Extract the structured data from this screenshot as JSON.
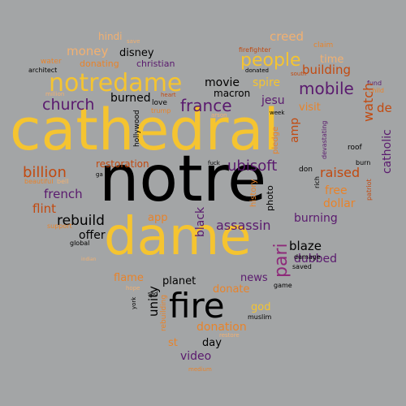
{
  "palette": {
    "background": "#a3a5a6",
    "yellow": "#f5c430",
    "orange": "#e8832a",
    "dark_orange": "#c24a10",
    "purple": "#5a1a6e",
    "magenta": "#8e2a7a",
    "peach": "#f2b070",
    "black": "#000000"
  },
  "words": [
    {
      "id": "notre",
      "text": "notre"
    },
    {
      "id": "cathedral",
      "text": "cathedral"
    },
    {
      "id": "dame",
      "text": "dame"
    },
    {
      "id": "fire",
      "text": "fire"
    },
    {
      "id": "notredame",
      "text": "notredame"
    },
    {
      "id": "people",
      "text": "people"
    },
    {
      "id": "church",
      "text": "church"
    },
    {
      "id": "france",
      "text": "france"
    },
    {
      "id": "mobile",
      "text": "mobile"
    },
    {
      "id": "paris",
      "text": "pari"
    },
    {
      "id": "rebuild",
      "text": "rebuild"
    },
    {
      "id": "billion",
      "text": "billion"
    },
    {
      "id": "money",
      "text": "money"
    },
    {
      "id": "creed",
      "text": "creed"
    },
    {
      "id": "building",
      "text": "building"
    },
    {
      "id": "disney",
      "text": "disney"
    },
    {
      "id": "hindi",
      "text": "hindi"
    },
    {
      "id": "save",
      "text": "save"
    },
    {
      "id": "water",
      "text": "water"
    },
    {
      "id": "donating",
      "text": "donating"
    },
    {
      "id": "christian",
      "text": "christian"
    },
    {
      "id": "architect",
      "text": "architect"
    },
    {
      "id": "firefighter",
      "text": "firefighter"
    },
    {
      "id": "claim",
      "text": "claim"
    },
    {
      "id": "time",
      "text": "time"
    },
    {
      "id": "donated",
      "text": "donated"
    },
    {
      "id": "south",
      "text": "south"
    },
    {
      "id": "million",
      "text": "million"
    },
    {
      "id": "movie",
      "text": "movie"
    },
    {
      "id": "spire",
      "text": "spire"
    },
    {
      "id": "macron",
      "text": "macron"
    },
    {
      "id": "heart",
      "text": "heart"
    },
    {
      "id": "fund",
      "text": "fund"
    },
    {
      "id": "child",
      "text": "child"
    },
    {
      "id": "burned",
      "text": "burned"
    },
    {
      "id": "love",
      "text": "love"
    },
    {
      "id": "jesu",
      "text": "jesu"
    },
    {
      "id": "visit",
      "text": "visit"
    },
    {
      "id": "watch",
      "text": "watch"
    },
    {
      "id": "de",
      "text": "de"
    },
    {
      "id": "catholic",
      "text": "catholic"
    },
    {
      "id": "trump",
      "text": "trump"
    },
    {
      "id": "week",
      "text": "week"
    },
    {
      "id": "arson",
      "text": "arson"
    },
    {
      "id": "pledge",
      "text": "pledge"
    },
    {
      "id": "amp",
      "text": "amp"
    },
    {
      "id": "devastating",
      "text": "devastating"
    },
    {
      "id": "roof",
      "text": "roof"
    },
    {
      "id": "hollywood",
      "text": "hollywood"
    },
    {
      "id": "burn",
      "text": "burn"
    },
    {
      "id": "patriot",
      "text": "patriot"
    },
    {
      "id": "restoration",
      "text": "restoration"
    },
    {
      "id": "ubisoft",
      "text": "ubisoft"
    },
    {
      "id": "beautiful",
      "text": "beautiful"
    },
    {
      "id": "bell",
      "text": "bell"
    },
    {
      "id": "ga",
      "text": "ga"
    },
    {
      "id": "fuck",
      "text": "fuck"
    },
    {
      "id": "don",
      "text": "don"
    },
    {
      "id": "raised",
      "text": "raised"
    },
    {
      "id": "rich",
      "text": "rich"
    },
    {
      "id": "history",
      "text": "history"
    },
    {
      "id": "photo",
      "text": "photo"
    },
    {
      "id": "free",
      "text": "free"
    },
    {
      "id": "french",
      "text": "french"
    },
    {
      "id": "flint",
      "text": "flint"
    },
    {
      "id": "black",
      "text": "black"
    },
    {
      "id": "dollar",
      "text": "dollar"
    },
    {
      "id": "burning",
      "text": "burning"
    },
    {
      "id": "app",
      "text": "app"
    },
    {
      "id": "support",
      "text": "support"
    },
    {
      "id": "assassin",
      "text": "assassin"
    },
    {
      "id": "offer",
      "text": "offer"
    },
    {
      "id": "global",
      "text": "global"
    },
    {
      "id": "blaze",
      "text": "blaze"
    },
    {
      "id": "indian",
      "text": "indian"
    },
    {
      "id": "dubbed",
      "text": "dubbed"
    },
    {
      "id": "damage",
      "text": "damage"
    },
    {
      "id": "saved",
      "text": "saved"
    },
    {
      "id": "flame",
      "text": "flame"
    },
    {
      "id": "news",
      "text": "news"
    },
    {
      "id": "planet",
      "text": "planet"
    },
    {
      "id": "game",
      "text": "game"
    },
    {
      "id": "hope",
      "text": "hope"
    },
    {
      "id": "unity",
      "text": "unity"
    },
    {
      "id": "donate",
      "text": "donate"
    },
    {
      "id": "sad",
      "text": "sad"
    },
    {
      "id": "york",
      "text": "york"
    },
    {
      "id": "rebuilding",
      "text": "rebuilding"
    },
    {
      "id": "god",
      "text": "god"
    },
    {
      "id": "muslim",
      "text": "muslim"
    },
    {
      "id": "donation",
      "text": "donation"
    },
    {
      "id": "restore",
      "text": "restore"
    },
    {
      "id": "st",
      "text": "st"
    },
    {
      "id": "day",
      "text": "day"
    },
    {
      "id": "video",
      "text": "video"
    },
    {
      "id": "medium",
      "text": "medium"
    }
  ]
}
